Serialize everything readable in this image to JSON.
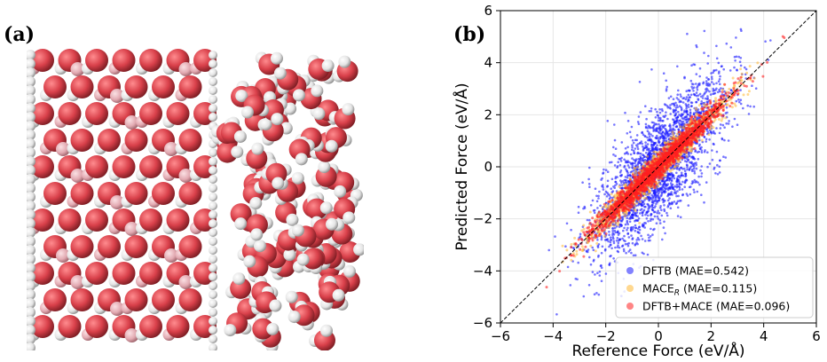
{
  "figure": {
    "panel_a_label": "(a)",
    "panel_b_label": "(b)"
  },
  "panel_a": {
    "description": "",
    "colors": {
      "oxygen": "#d9404a",
      "hydrogen": "#ececec",
      "substrate_light": "#e2a9b1"
    }
  },
  "chart_data": {
    "type": "scatter",
    "title": "",
    "xlabel": "Reference Force (eV/Å)",
    "ylabel": "Predicted Force (eV/Å)",
    "xlim": [
      -6,
      6
    ],
    "ylim": [
      -6,
      6
    ],
    "xticks": [
      "−6",
      "−4",
      "−2",
      "0",
      "2",
      "4",
      "6"
    ],
    "yticks": [
      "−6",
      "−4",
      "−2",
      "0",
      "2",
      "4",
      "6"
    ],
    "xtick_values": [
      -6,
      -4,
      -2,
      0,
      2,
      4,
      6
    ],
    "ytick_values": [
      -6,
      -4,
      -2,
      0,
      2,
      4,
      6
    ],
    "grid": true,
    "legend_position": "bottom-right",
    "identity_line": true,
    "series": [
      {
        "name": "DFTB",
        "mae_label": "(MAE=0.542)",
        "color": "#1a1aff",
        "spread": 1.05,
        "count": 2600
      },
      {
        "name": "MACE",
        "subscript": "R",
        "mae_label": "(MAE=0.115)",
        "color": "#ffb833",
        "spread": 0.3,
        "count": 1400
      },
      {
        "name": "DFTB+MACE",
        "mae_label": "(MAE=0.096)",
        "color": "#ff2020",
        "spread": 0.22,
        "count": 1800
      }
    ]
  }
}
